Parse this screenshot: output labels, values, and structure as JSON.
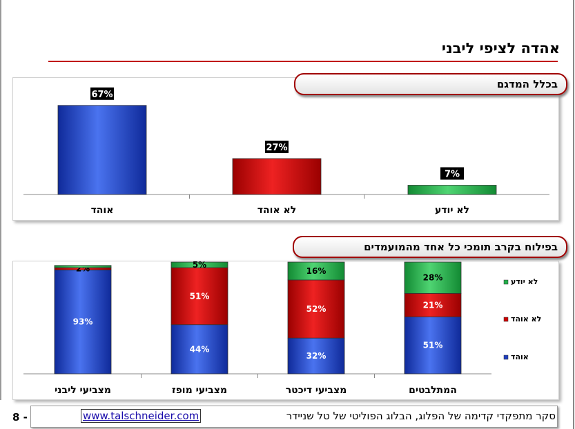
{
  "page": {
    "title": "אהדה לציפי ליבני",
    "page_number": "8 -",
    "footer_text": "סקר מתפקדי קדימה של הפלוג, הבלוג הפוליטי של טל שניידר",
    "footer_link": "www.talschneider.com"
  },
  "colors": {
    "blue": "#1f3fbf",
    "red": "#cc0000",
    "green": "#22b04a",
    "accent": "#c00000"
  },
  "chart_data": [
    {
      "type": "bar",
      "title": "בכלל המדגם",
      "categories": [
        "אוהד",
        "לא אוהד",
        "לא יודע"
      ],
      "values": [
        67,
        27,
        7
      ],
      "value_labels": [
        "67%",
        "27%",
        "7%"
      ],
      "colors": [
        "#1f3fbf",
        "#cc0000",
        "#22b04a"
      ],
      "ylim": [
        0,
        70
      ],
      "grid": false
    },
    {
      "type": "bar",
      "stacked": true,
      "title": "בפילוח בקרב תומכי כל אחד מהמועמדים",
      "categories": [
        "מצביעי ליבני",
        "מצביעי מופז",
        "מצביעי דיכטר",
        "המתלבטים"
      ],
      "series": [
        {
          "name": "אוהד",
          "values": [
            93,
            44,
            32,
            51
          ],
          "labels": [
            "93%",
            "44%",
            "32%",
            "51%"
          ],
          "color": "#1f3fbf"
        },
        {
          "name": "לא אוהד",
          "values": [
            2,
            51,
            52,
            21
          ],
          "labels": [
            "2%",
            "51%",
            "52%",
            "21%"
          ],
          "color": "#cc0000"
        },
        {
          "name": "לא יודע",
          "values": [
            2,
            5,
            16,
            28
          ],
          "labels": [
            "",
            "5%",
            "16%",
            "28%"
          ],
          "color": "#22b04a"
        }
      ],
      "legend": [
        "לא יודע",
        "לא אוהד",
        "אוהד"
      ],
      "legend_position": "right",
      "ylim": [
        0,
        100
      ],
      "grid": false
    }
  ]
}
